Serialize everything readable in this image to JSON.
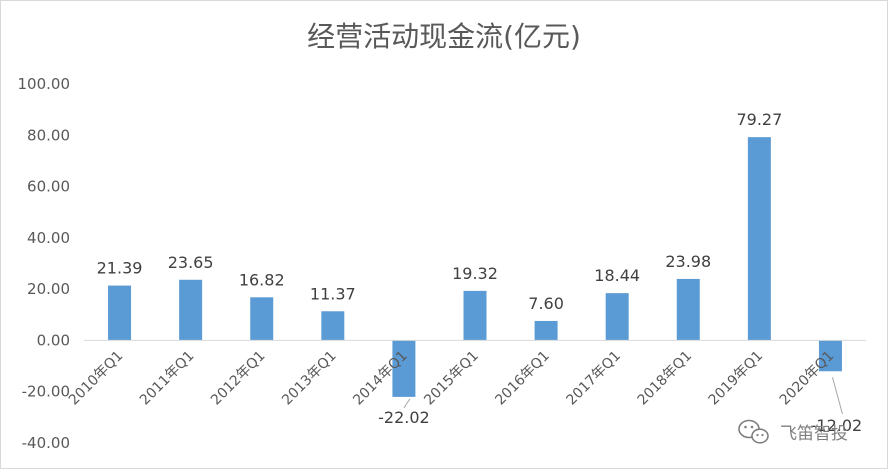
{
  "chart_data": {
    "type": "bar",
    "title": "经营活动现金流(亿元)",
    "categories": [
      "2010年Q1",
      "2011年Q1",
      "2012年Q1",
      "2013年Q1",
      "2014年Q1",
      "2015年Q1",
      "2016年Q1",
      "2017年Q1",
      "2018年Q1",
      "2019年Q1",
      "2020年Q1"
    ],
    "values": [
      21.39,
      23.65,
      16.82,
      11.37,
      -22.02,
      19.32,
      7.6,
      18.44,
      23.98,
      79.27,
      -12.02
    ],
    "value_labels": [
      "21.39",
      "23.65",
      "16.82",
      "11.37",
      "-22.02",
      "19.32",
      "7.60",
      "18.44",
      "23.98",
      "79.27",
      "-12.02"
    ],
    "ylim": [
      -40,
      100
    ],
    "yticks": [
      "100.00",
      "80.00",
      "60.00",
      "40.00",
      "20.00",
      "0.00",
      "-20.00",
      "-40.00"
    ],
    "ytick_values": [
      100,
      80,
      60,
      40,
      20,
      0,
      -20,
      -40
    ],
    "bar_color": "#5b9bd5",
    "grid": false,
    "legend": "none"
  },
  "watermark": {
    "text": "飞笛智投",
    "icon": "wechat-icon"
  }
}
